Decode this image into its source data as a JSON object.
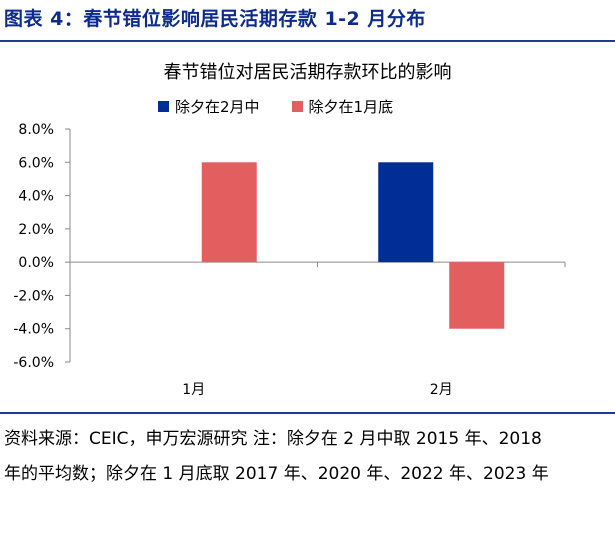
{
  "figure_title": "图表 4：春节错位影响居民活期存款 1-2 月分布",
  "source_note": "资料来源：CEIC，申万宏源研究 注：除夕在 2 月中取 2015 年、2018 年的平均数；除夕在 1 月底取 2017 年、2020 年、2022 年、2023 年",
  "colors": {
    "title": "#0d2b8c",
    "rule": "#1f3a93"
  },
  "chart_data": {
    "type": "bar",
    "title": "春节错位对居民活期存款环比的影响",
    "categories": [
      "1月",
      "2月"
    ],
    "series": [
      {
        "name": "除夕在2月中",
        "values": [
          null,
          6.0
        ],
        "color": "#002d96"
      },
      {
        "name": "除夕在1月底",
        "values": [
          6.0,
          -4.0
        ],
        "color": "#e35f5f"
      }
    ],
    "yticks": [
      "8.0%",
      "6.0%",
      "4.0%",
      "2.0%",
      "0.0%",
      "-2.0%",
      "-4.0%",
      "-6.0%"
    ],
    "ylim": [
      -6,
      8
    ],
    "ystep": 2,
    "unit": "%",
    "xlabel": "",
    "ylabel": ""
  }
}
